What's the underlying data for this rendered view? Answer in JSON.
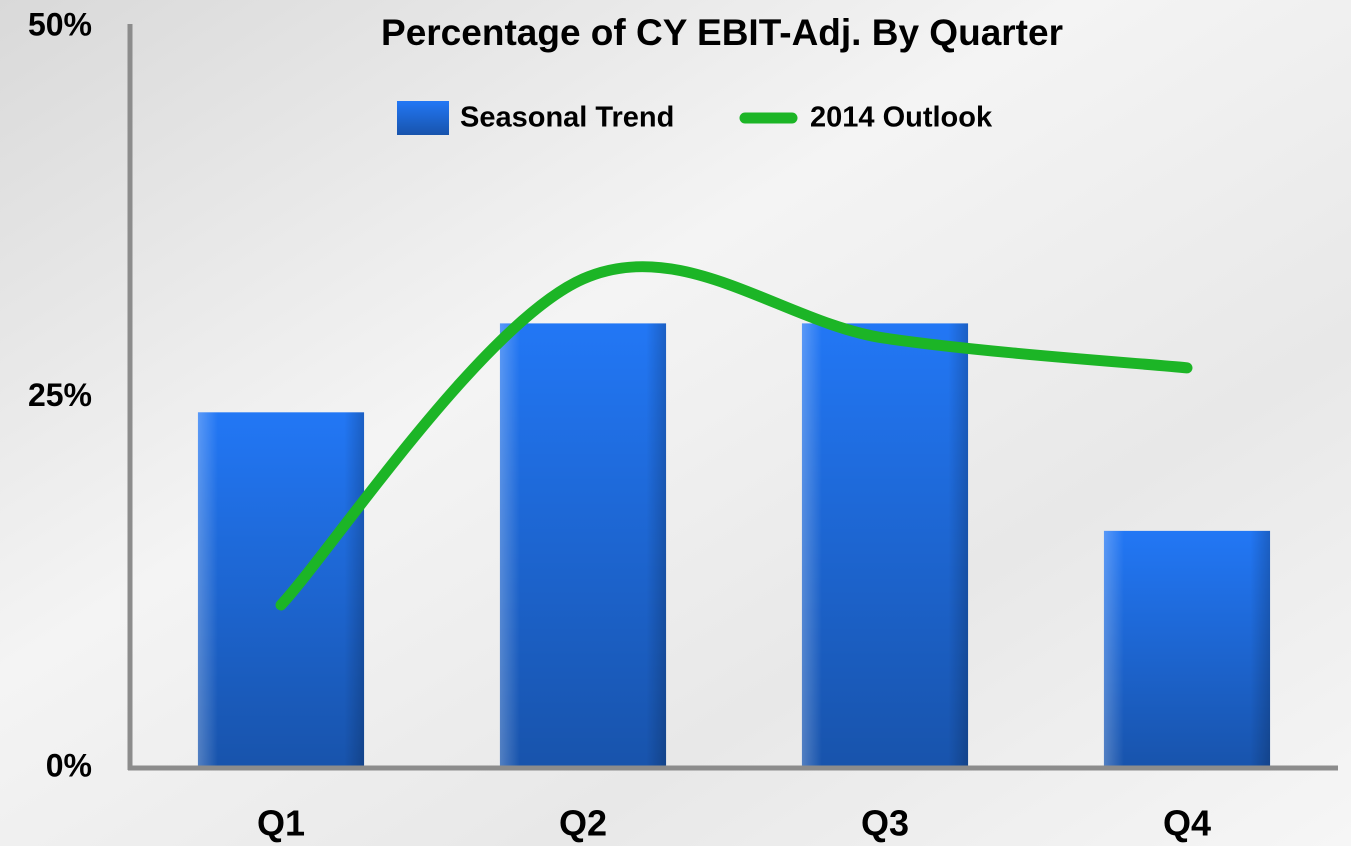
{
  "chart_data": {
    "type": "bar",
    "title": "Percentage of CY EBIT-Adj. By Quarter",
    "categories": [
      "Q1",
      "Q2",
      "Q3",
      "Q4"
    ],
    "series": [
      {
        "name": "Seasonal Trend",
        "type": "bar",
        "color": "#2277f5",
        "values": [
          24,
          30,
          30,
          16
        ]
      },
      {
        "name": "2014 Outlook",
        "type": "line",
        "color": "#1cb526",
        "values": [
          11,
          33,
          29,
          27
        ]
      }
    ],
    "ylim": [
      0,
      50
    ],
    "yticks": [
      {
        "value": 0,
        "label": "0%"
      },
      {
        "value": 25,
        "label": "25%"
      },
      {
        "value": 50,
        "label": "50%"
      }
    ],
    "grid": false
  }
}
